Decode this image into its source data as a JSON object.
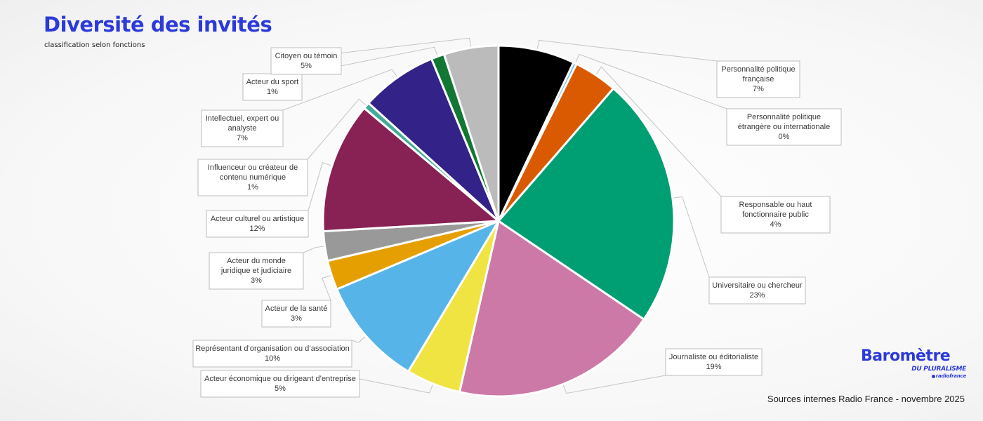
{
  "header": {
    "title": "Diversité des invités",
    "subtitle": "classification selon fonctions"
  },
  "footer": {
    "source": "Sources internes Radio France - novembre 2025"
  },
  "logo": {
    "word": "Baromètre",
    "sub": "DU PLURALISME",
    "brand": "radiofrance"
  },
  "chart_data": {
    "type": "pie",
    "start": "top",
    "direction": "clockwise",
    "slices": [
      {
        "label": "Personnalité politique française",
        "value": 7,
        "display": "7%",
        "color": "#000000"
      },
      {
        "label": "Personnalité politique étrangère ou internationale",
        "value": 0.3,
        "display": "0%",
        "color": "#5bb7e8"
      },
      {
        "label": "Responsable ou haut fonctionnaire public",
        "value": 4,
        "display": "4%",
        "color": "#d95a00"
      },
      {
        "label": "Universitaire ou chercheur",
        "value": 23,
        "display": "23%",
        "color": "#009e73"
      },
      {
        "label": "Journaliste ou éditorialiste",
        "value": 19,
        "display": "19%",
        "color": "#cc79a7"
      },
      {
        "label": "Acteur économique ou dirigeant d’entreprise",
        "value": 5,
        "display": "5%",
        "color": "#f0e442"
      },
      {
        "label": "Représentant d’organisation ou d’association",
        "value": 10,
        "display": "10%",
        "color": "#56b4e9"
      },
      {
        "label": "Acteur de la santé",
        "value": 2.7,
        "display": "3%",
        "color": "#e69f00"
      },
      {
        "label": "Acteur du monde juridique et judiciaire",
        "value": 2.7,
        "display": "3%",
        "color": "#999999"
      },
      {
        "label": "Acteur culturel ou artistique",
        "value": 12,
        "display": "12%",
        "color": "#882255"
      },
      {
        "label": "Influenceur ou créateur de contenu numérique",
        "value": 0.6,
        "display": "1%",
        "color": "#44aa99"
      },
      {
        "label": "Intellectuel, expert ou analyste",
        "value": 7,
        "display": "7%",
        "color": "#332288"
      },
      {
        "label": "Acteur du sport",
        "value": 1.2,
        "display": "1%",
        "color": "#117733"
      },
      {
        "label": "Citoyen ou témoin",
        "value": 5,
        "display": "5%",
        "color": "#bbbbbb"
      }
    ]
  }
}
